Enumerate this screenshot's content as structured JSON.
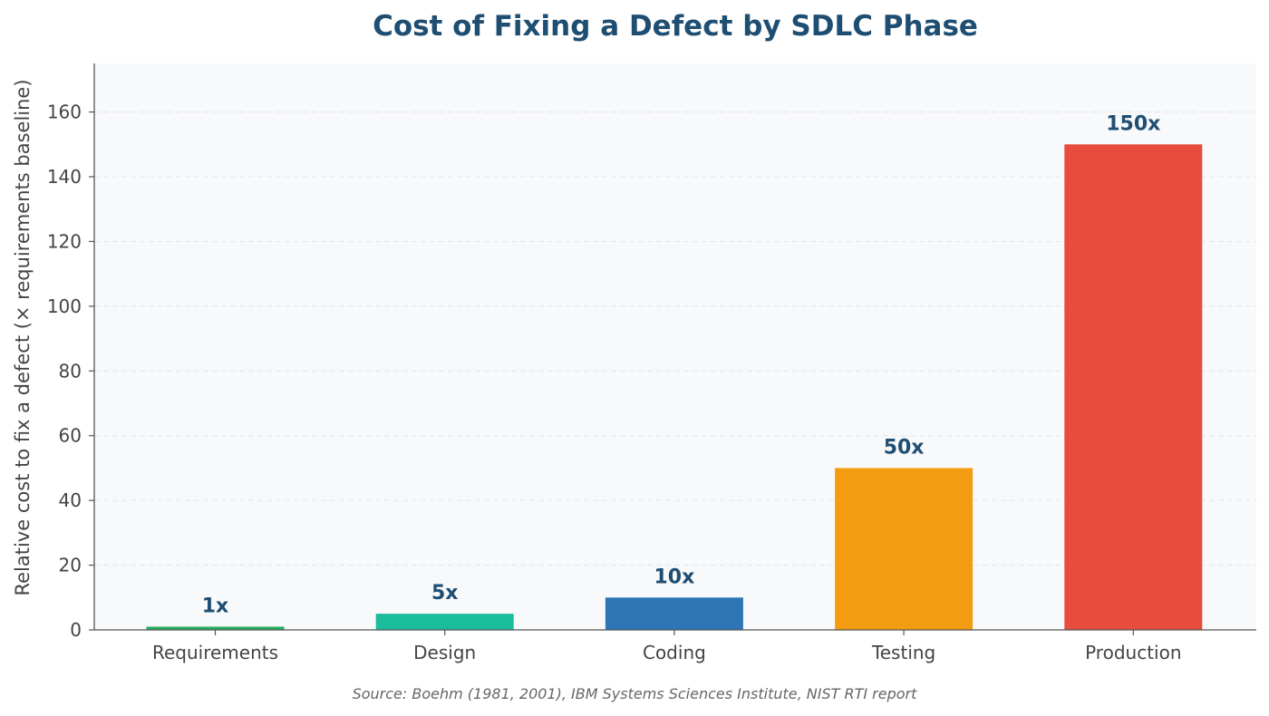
{
  "chart_data": {
    "type": "bar",
    "title": "Cost of Fixing a Defect by SDLC Phase",
    "ylabel": "Relative cost to fix a defect (× requirements baseline)",
    "xlabel": "",
    "categories": [
      "Requirements",
      "Design",
      "Coding",
      "Testing",
      "Production"
    ],
    "values": [
      1,
      5,
      10,
      50,
      150
    ],
    "data_labels": [
      "1x",
      "5x",
      "10x",
      "50x",
      "150x"
    ],
    "colors": [
      "#27ae60",
      "#1abc9c",
      "#2e75b6",
      "#f39c12",
      "#e74c3c"
    ],
    "ylim": [
      0,
      175
    ],
    "yticks": [
      0,
      20,
      40,
      60,
      80,
      100,
      120,
      140,
      160
    ],
    "grid": "horizontal, dashed",
    "source": "Source: Boehm (1981, 2001), IBM Systems Sciences Institute, NIST RTI report"
  }
}
